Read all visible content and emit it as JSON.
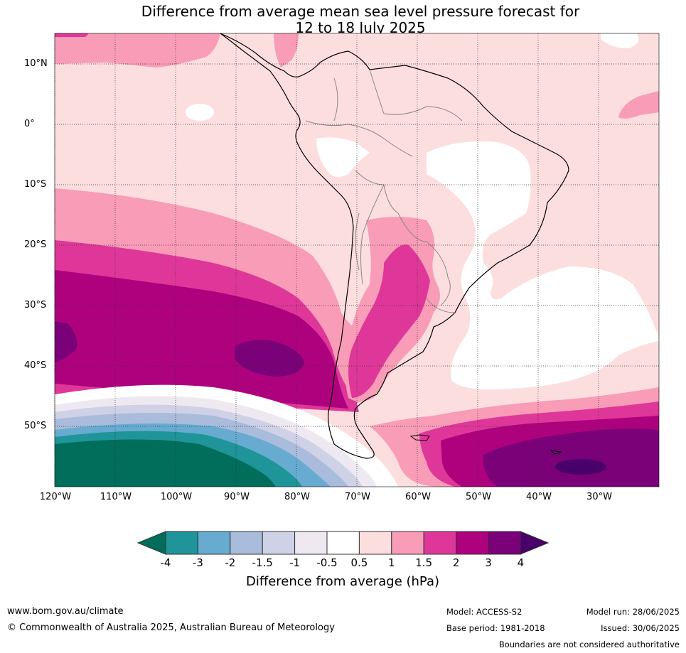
{
  "title_line1": "Difference from average mean sea level pressure forecast for",
  "title_line2": "12 to 18 July 2025",
  "lat_labels": [
    "10°N",
    "0°",
    "10°S",
    "20°S",
    "30°S",
    "40°S",
    "50°S"
  ],
  "lon_labels": [
    "120°W",
    "110°W",
    "100°W",
    "90°W",
    "80°W",
    "70°W",
    "60°W",
    "50°W",
    "40°W",
    "30°W"
  ],
  "colorbar": {
    "label": "Difference from average (hPa)",
    "ticks": [
      "-4",
      "-3",
      "-2",
      "-1.5",
      "-1",
      "-0.5",
      "0.5",
      "1",
      "1.5",
      "2",
      "3",
      "4"
    ],
    "colors": {
      "below_-4": "#006e5a",
      "-4_-3": "#1f9499",
      "-3_-2": "#67abd1",
      "-2_-1.5": "#a9bcdc",
      "-1.5_-1": "#cfd1e6",
      "-1_-0.5": "#eee9f0",
      "-0.5_0.5": "#ffffff",
      "0.5_1": "#fddede",
      "1_1.5": "#f99cb8",
      "1.5_2": "#df3799",
      "2_3": "#ae017e",
      "3_4": "#7a0177",
      "above_4": "#49006a"
    }
  },
  "footer": {
    "website": "www.bom.gov.au/climate",
    "copyright": "© Commonwealth of Australia 2025, Australian Bureau of Meteorology",
    "model": "Model: ACCESS-S2",
    "base_period": "Base period: 1981-2018",
    "model_run": "Model run: 28/06/2025",
    "issued": "Issued: 30/06/2025",
    "disclaimer": "Boundaries are not considered authoritative"
  }
}
